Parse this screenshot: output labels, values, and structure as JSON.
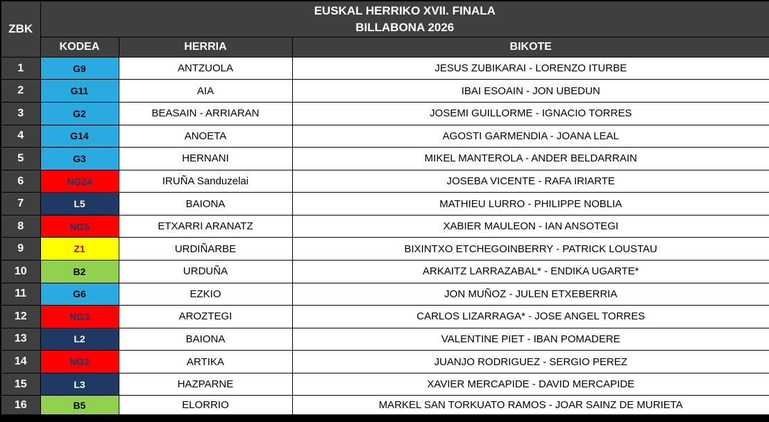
{
  "header": {
    "zbk_label": "ZBK",
    "title_line1": "EUSKAL HERRIKO XVII. FINALA",
    "title_line2": "BILLABONA 2026",
    "columns": {
      "kodea": "KODEA",
      "herria": "HERRIA",
      "bikote": "BIKOTE"
    }
  },
  "colors": {
    "header_bg": "#3F3F3F",
    "header_text": "#FFFFFF",
    "grid": "#000000",
    "code_cyan": "#29ABE2",
    "code_red": "#FF0000",
    "code_navy": "#1F3864",
    "code_yellow": "#FFFF00",
    "code_green": "#92D050",
    "dark_red_text": "#C00000"
  },
  "rows": [
    {
      "zbk": "1",
      "code": "G9",
      "code_bg": "#29ABE2",
      "code_fg": "#000000",
      "herria": "ANTZUOLA",
      "bikote": "JESUS ZUBIKARAI - LORENZO ITURBE"
    },
    {
      "zbk": "2",
      "code": "G11",
      "code_bg": "#29ABE2",
      "code_fg": "#000000",
      "herria": "AIA",
      "bikote": "IBAI ESOAIN - JON UBEDUN"
    },
    {
      "zbk": "3",
      "code": "G2",
      "code_bg": "#29ABE2",
      "code_fg": "#000000",
      "herria": "BEASAIN - ARRIARAN",
      "bikote": "JOSEMI GUILLORME - IGNACIO TORRES"
    },
    {
      "zbk": "4",
      "code": "G14",
      "code_bg": "#29ABE2",
      "code_fg": "#000000",
      "herria": "ANOETA",
      "bikote": "AGOSTI GARMENDIA - JOANA LEAL"
    },
    {
      "zbk": "5",
      "code": "G3",
      "code_bg": "#29ABE2",
      "code_fg": "#000000",
      "herria": "HERNANI",
      "bikote": "MIKEL MANTEROLA - ANDER BELDARRAIN"
    },
    {
      "zbk": "6",
      "code": "NG24",
      "code_bg": "#FF0000",
      "code_fg": "#1F3864",
      "herria": "IRUÑA Sanduzelai",
      "bikote": "JOSEBA VICENTE - RAFA IRIARTE"
    },
    {
      "zbk": "7",
      "code": "L5",
      "code_bg": "#1F3864",
      "code_fg": "#FFFFFF",
      "herria": "BAIONA",
      "bikote": "MATHIEU LURRO - PHILIPPE NOBLIA"
    },
    {
      "zbk": "8",
      "code": "NG5",
      "code_bg": "#FF0000",
      "code_fg": "#1F3864",
      "herria": "ETXARRI ARANATZ",
      "bikote": "XABIER MAULEON - IAN ANSOTEGI"
    },
    {
      "zbk": "9",
      "code": "Z1",
      "code_bg": "#FFFF00",
      "code_fg": "#C00000",
      "herria": "URDIÑARBE",
      "bikote": "BIXINTXO ETCHEGOINBERRY - PATRICK LOUSTAU"
    },
    {
      "zbk": "10",
      "code": "B2",
      "code_bg": "#92D050",
      "code_fg": "#000000",
      "herria": "URDUÑA",
      "bikote": "ARKAITZ LARRAZABAL* - ENDIKA UGARTE*"
    },
    {
      "zbk": "11",
      "code": "G6",
      "code_bg": "#29ABE2",
      "code_fg": "#000000",
      "herria": "EZKIO",
      "bikote": "JON MUÑOZ - JULEN ETXEBERRIA"
    },
    {
      "zbk": "12",
      "code": "NG3",
      "code_bg": "#FF0000",
      "code_fg": "#1F3864",
      "herria": "AROZTEGI",
      "bikote": "CARLOS LIZARRAGA* - JOSE ANGEL TORRES"
    },
    {
      "zbk": "13",
      "code": "L2",
      "code_bg": "#1F3864",
      "code_fg": "#FFFFFF",
      "herria": "BAIONA",
      "bikote": "VALENTINE PIET - IBAN POMADERE"
    },
    {
      "zbk": "14",
      "code": "NG2",
      "code_bg": "#FF0000",
      "code_fg": "#1F3864",
      "herria": "ARTIKA",
      "bikote": "JUANJO RODRIGUEZ - SERGIO PEREZ"
    },
    {
      "zbk": "15",
      "code": "L3",
      "code_bg": "#1F3864",
      "code_fg": "#FFFFFF",
      "herria": "HAZPARNE",
      "bikote": "XAVIER MERCAPIDE - DAVID MERCAPIDE"
    },
    {
      "zbk": "16",
      "code": "B5",
      "code_bg": "#92D050",
      "code_fg": "#000000",
      "herria": "ELORRIO",
      "bikote": "MARKEL SAN TORKUATO RAMOS  - JOAR SAINZ DE MURIETA"
    }
  ]
}
